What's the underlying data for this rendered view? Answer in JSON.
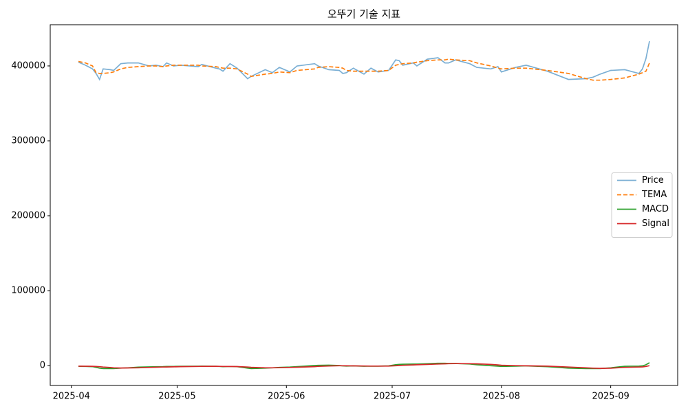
{
  "chart_data": {
    "type": "line",
    "title": "오뚜기 기술 지표",
    "x": [
      2,
      4,
      6,
      7,
      8,
      9,
      11,
      12,
      14,
      16,
      19,
      22,
      24,
      26,
      27,
      29,
      31,
      36,
      37,
      41,
      42,
      43,
      45,
      47,
      50,
      51,
      55,
      57,
      59,
      62,
      64,
      69,
      70,
      73,
      76,
      77,
      78,
      80,
      83,
      85,
      87,
      90,
      92,
      93,
      94,
      97,
      98,
      101,
      104,
      106,
      107,
      109,
      113,
      115,
      119,
      121,
      122,
      126,
      129,
      135,
      141,
      146,
      148,
      150,
      153,
      157,
      161,
      162,
      163,
      164
    ],
    "series": [
      {
        "name": "Price",
        "color": "#7bafd4",
        "dashed": false,
        "values": [
          405000,
          401000,
          396000,
          390000,
          382000,
          396000,
          395000,
          394000,
          403000,
          404000,
          404000,
          400000,
          401000,
          399000,
          404000,
          400000,
          401000,
          399000,
          402000,
          397000,
          396000,
          393000,
          403000,
          397000,
          383000,
          386000,
          395000,
          391000,
          398000,
          392000,
          400000,
          403000,
          400000,
          395000,
          394000,
          390000,
          391000,
          397000,
          389000,
          397000,
          392000,
          394000,
          408000,
          407000,
          401000,
          404000,
          400000,
          409000,
          411000,
          404000,
          404000,
          408000,
          403000,
          398000,
          396000,
          399000,
          392000,
          398000,
          401000,
          393000,
          382000,
          383000,
          385000,
          389000,
          394000,
          395000,
          390000,
          396000,
          410000,
          433000
        ]
      },
      {
        "name": "TEMA",
        "color": "#ff7f0e",
        "dashed": true,
        "values": [
          406000,
          404000,
          400000,
          391000,
          390000,
          390000,
          391000,
          392000,
          396000,
          398000,
          399000,
          400000,
          400000,
          399000,
          400000,
          401000,
          401000,
          401000,
          400000,
          399000,
          398000,
          397000,
          397000,
          396000,
          389000,
          386000,
          389000,
          390000,
          392000,
          391000,
          394000,
          396000,
          398000,
          399000,
          398000,
          397000,
          394000,
          393000,
          393000,
          393000,
          393000,
          394000,
          401000,
          402000,
          403000,
          404000,
          405000,
          407000,
          408000,
          408000,
          409000,
          408000,
          407000,
          404000,
          400000,
          397000,
          396000,
          397000,
          397000,
          394000,
          390000,
          383000,
          381000,
          381000,
          382000,
          384000,
          389000,
          391000,
          393000,
          404000
        ]
      },
      {
        "name": "MACD",
        "color": "#2ca02c",
        "dashed": false,
        "values": [
          -1000,
          -1200,
          -1500,
          -2500,
          -3500,
          -4000,
          -4000,
          -4000,
          -3500,
          -3000,
          -2200,
          -1800,
          -1600,
          -1500,
          -1300,
          -1200,
          -1000,
          -900,
          -800,
          -1000,
          -1200,
          -1500,
          -1200,
          -1500,
          -3500,
          -4000,
          -3500,
          -3000,
          -2500,
          -2000,
          -1500,
          0,
          300,
          500,
          0,
          -500,
          -700,
          -500,
          -900,
          -700,
          -800,
          -500,
          1000,
          1500,
          1700,
          2000,
          2000,
          2500,
          3000,
          3000,
          2800,
          2800,
          2000,
          1000,
          -300,
          -800,
          -1200,
          -800,
          -500,
          -1500,
          -3500,
          -4000,
          -4000,
          -4000,
          -3000,
          -1000,
          -700,
          -500,
          1000,
          3800
        ]
      },
      {
        "name": "Signal",
        "color": "#d62728",
        "dashed": false,
        "values": [
          -800,
          -900,
          -1000,
          -1300,
          -1600,
          -2000,
          -2600,
          -3000,
          -3300,
          -3200,
          -3000,
          -2600,
          -2300,
          -2000,
          -1900,
          -1700,
          -1500,
          -1200,
          -1100,
          -1000,
          -1100,
          -1200,
          -1300,
          -1400,
          -2000,
          -2400,
          -3000,
          -3000,
          -2900,
          -2600,
          -2300,
          -1500,
          -1100,
          -600,
          -300,
          -300,
          -400,
          -500,
          -600,
          -700,
          -700,
          -700,
          -300,
          0,
          300,
          800,
          1000,
          1500,
          2000,
          2300,
          2500,
          2600,
          2500,
          2300,
          1500,
          800,
          400,
          -200,
          -400,
          -800,
          -2000,
          -3000,
          -3500,
          -3800,
          -3600,
          -2500,
          -2000,
          -1800,
          -1200,
          -200
        ]
      }
    ],
    "xlim": [
      -6,
      172
    ],
    "xticks": [
      {
        "value": 0,
        "label": "2025-04"
      },
      {
        "value": 30,
        "label": "2025-05"
      },
      {
        "value": 61,
        "label": "2025-06"
      },
      {
        "value": 91,
        "label": "2025-07"
      },
      {
        "value": 122,
        "label": "2025-08"
      },
      {
        "value": 153,
        "label": "2025-09"
      }
    ],
    "ylim": [
      -26600,
      455000
    ],
    "yticks": [
      0,
      100000,
      200000,
      300000,
      400000
    ],
    "legend": "center right"
  }
}
